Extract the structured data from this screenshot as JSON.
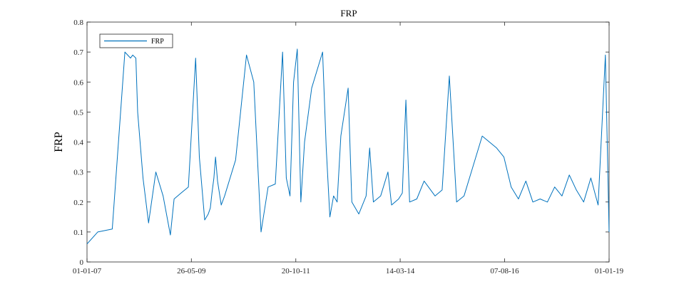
{
  "chart_data": {
    "type": "line",
    "title": "FRP",
    "xlabel": "",
    "ylabel": "FRP",
    "x_ticks": [
      "01-01-07",
      "26-05-09",
      "20-10-11",
      "14-03-14",
      "07-08-16",
      "01-01-19"
    ],
    "x_range": [
      "01-01-07",
      "01-01-19"
    ],
    "ylim": [
      0,
      0.8
    ],
    "y_ticks": [
      0,
      0.1,
      0.2,
      0.3,
      0.4,
      0.5,
      0.6,
      0.7,
      0.8
    ],
    "grid": false,
    "legend": {
      "position": "top-left",
      "entries": [
        "FRP"
      ]
    },
    "colors": {
      "series": "#0072BD",
      "axis": "#262626"
    },
    "series": [
      {
        "name": "FRP",
        "x": [
          "2007-01-01",
          "2007-04-01",
          "2007-08-01",
          "2007-11-15",
          "2008-01-01",
          "2008-01-20",
          "2008-02-15",
          "2008-03-01",
          "2008-04-15",
          "2008-06-01",
          "2008-08-01",
          "2008-10-01",
          "2008-12-01",
          "2009-01-01",
          "2009-03-01",
          "2009-05-01",
          "2009-07-01",
          "2009-08-01",
          "2009-09-15",
          "2009-10-15",
          "2009-11-01",
          "2009-11-15",
          "2009-12-01",
          "2009-12-15",
          "2010-01-01",
          "2010-02-01",
          "2010-03-01",
          "2010-06-01",
          "2010-09-01",
          "2010-11-01",
          "2011-01-01",
          "2011-03-01",
          "2011-05-01",
          "2011-07-01",
          "2011-08-01",
          "2011-09-01",
          "2011-10-01",
          "2011-11-01",
          "2011-12-01",
          "2012-01-01",
          "2012-03-01",
          "2012-06-01",
          "2012-07-01",
          "2012-08-01",
          "2012-09-01",
          "2012-10-01",
          "2012-11-01",
          "2013-01-01",
          "2013-02-01",
          "2013-04-01",
          "2013-06-01",
          "2013-07-01",
          "2013-08-01",
          "2013-10-01",
          "2013-12-01",
          "2014-01-01",
          "2014-03-01",
          "2014-04-01",
          "2014-05-01",
          "2014-06-01",
          "2014-08-01",
          "2014-10-01",
          "2015-01-01",
          "2015-03-01",
          "2015-05-01",
          "2015-07-01",
          "2015-09-01",
          "2015-11-01",
          "2016-02-01",
          "2016-06-01",
          "2016-08-01",
          "2016-10-01",
          "2016-12-01",
          "2017-02-01",
          "2017-04-01",
          "2017-06-01",
          "2017-08-01",
          "2017-10-01",
          "2017-12-01",
          "2018-02-01",
          "2018-04-01",
          "2018-06-01",
          "2018-08-01",
          "2018-10-01",
          "2018-12-01",
          "2019-01-01"
        ],
        "y": [
          0.06,
          0.1,
          0.11,
          0.7,
          0.68,
          0.69,
          0.68,
          0.5,
          0.28,
          0.13,
          0.3,
          0.22,
          0.09,
          0.21,
          0.23,
          0.25,
          0.68,
          0.35,
          0.14,
          0.16,
          0.18,
          0.23,
          0.28,
          0.35,
          0.27,
          0.19,
          0.22,
          0.34,
          0.69,
          0.6,
          0.1,
          0.25,
          0.26,
          0.7,
          0.28,
          0.22,
          0.6,
          0.71,
          0.2,
          0.4,
          0.58,
          0.7,
          0.38,
          0.15,
          0.22,
          0.2,
          0.42,
          0.58,
          0.2,
          0.16,
          0.22,
          0.38,
          0.2,
          0.22,
          0.3,
          0.19,
          0.21,
          0.23,
          0.54,
          0.2,
          0.21,
          0.27,
          0.22,
          0.24,
          0.62,
          0.2,
          0.22,
          0.3,
          0.42,
          0.38,
          0.35,
          0.25,
          0.21,
          0.27,
          0.2,
          0.21,
          0.2,
          0.25,
          0.22,
          0.29,
          0.24,
          0.2,
          0.28,
          0.19,
          0.69,
          0.1
        ]
      }
    ]
  }
}
